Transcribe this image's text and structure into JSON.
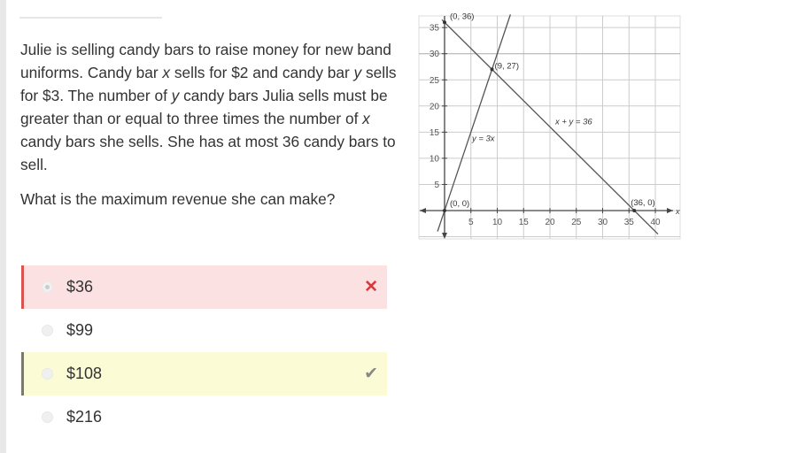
{
  "question": {
    "paragraph1_parts": [
      "Julie is selling candy bars to raise money for new band uniforms. Candy bar ",
      "x",
      " sells for $2 and candy bar ",
      "y",
      " sells for $3. The number of ",
      "y",
      " candy bars Julia sells must be greater than or equal to three times the number of ",
      "x",
      " candy bars she sells. She has at most 36 candy bars to sell."
    ],
    "paragraph2": "What is the maximum revenue she can make?"
  },
  "options": [
    {
      "label": "$36",
      "state": "selected-wrong",
      "mark": "✕",
      "mark_icon": "x-icon"
    },
    {
      "label": "$99",
      "state": "none"
    },
    {
      "label": "$108",
      "state": "correct",
      "mark": "✔",
      "mark_icon": "check-icon"
    },
    {
      "label": "$216",
      "state": "none"
    }
  ],
  "colors": {
    "wrong_bg": "#fbe1e2",
    "wrong_accent": "#d9534f",
    "correct_bg": "#fbfcd5",
    "correct_accent": "#7a7a6a"
  },
  "graph": {
    "x_label": "x",
    "x_ticks": [
      5,
      10,
      15,
      20,
      25,
      30,
      35,
      40
    ],
    "y_ticks": [
      5,
      10,
      15,
      20,
      25,
      30,
      35
    ],
    "lines": [
      {
        "label": "y = 3x",
        "slope": 3,
        "intercept": 0
      },
      {
        "label": "x + y = 36",
        "slope": -1,
        "intercept": 36
      }
    ],
    "points": [
      {
        "label": "(0, 36)",
        "x": 0,
        "y": 36
      },
      {
        "label": "(9, 27)",
        "x": 9,
        "y": 27
      },
      {
        "label": "(0, 0)",
        "x": 0,
        "y": 0
      },
      {
        "label": "(36, 0)",
        "x": 36,
        "y": 0
      }
    ]
  }
}
